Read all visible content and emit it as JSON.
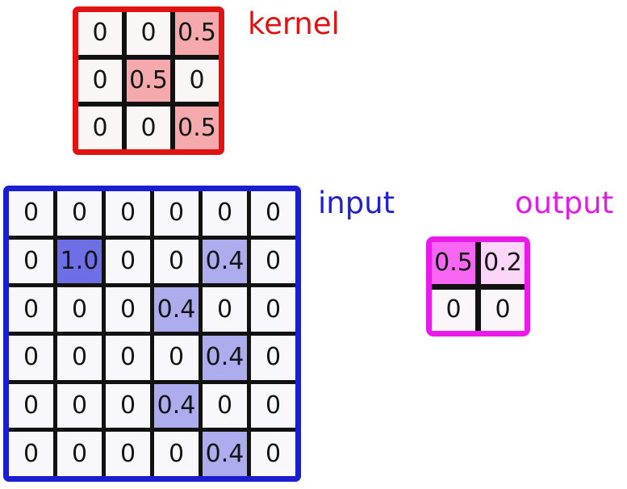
{
  "diagram": {
    "description_colors": {
      "grid_line_color": "#111111",
      "cell_text_color": "#141414",
      "background": "#ffffff"
    },
    "kernel": {
      "label": "kernel",
      "label_color": "#e01212",
      "frame_color": "#e01212",
      "rows": [
        [
          "0",
          "0",
          "0.5"
        ],
        [
          "0",
          "0.5",
          "0"
        ],
        [
          "0",
          "0",
          "0.5"
        ]
      ],
      "cell_colors": {
        "0": "#faf6f5",
        "0.5": "#f5a9ac"
      }
    },
    "input": {
      "label": "input",
      "label_color": "#2222cc",
      "frame_color": "#1a1ed0",
      "rows": [
        [
          "0",
          "0",
          "0",
          "0",
          "0",
          "0"
        ],
        [
          "0",
          "1.0",
          "0",
          "0",
          "0.4",
          "0"
        ],
        [
          "0",
          "0",
          "0",
          "0.4",
          "0",
          "0"
        ],
        [
          "0",
          "0",
          "0",
          "0",
          "0.4",
          "0"
        ],
        [
          "0",
          "0",
          "0",
          "0.4",
          "0",
          "0"
        ],
        [
          "0",
          "0",
          "0",
          "0",
          "0.4",
          "0"
        ]
      ],
      "cell_colors": {
        "0": "#f8f7fc",
        "1.0": "#6e6ee7",
        "0.4": "#adacee"
      }
    },
    "output": {
      "label": "output",
      "label_color": "#e61ae6",
      "frame_color": "#ea1aea",
      "rows": [
        [
          "0.5",
          "0.2"
        ],
        [
          "0",
          "0"
        ]
      ],
      "cell_colors": {
        "0": "#faf6f9",
        "0.5": "#f767f3",
        "0.2": "#fbd6f9"
      }
    }
  }
}
